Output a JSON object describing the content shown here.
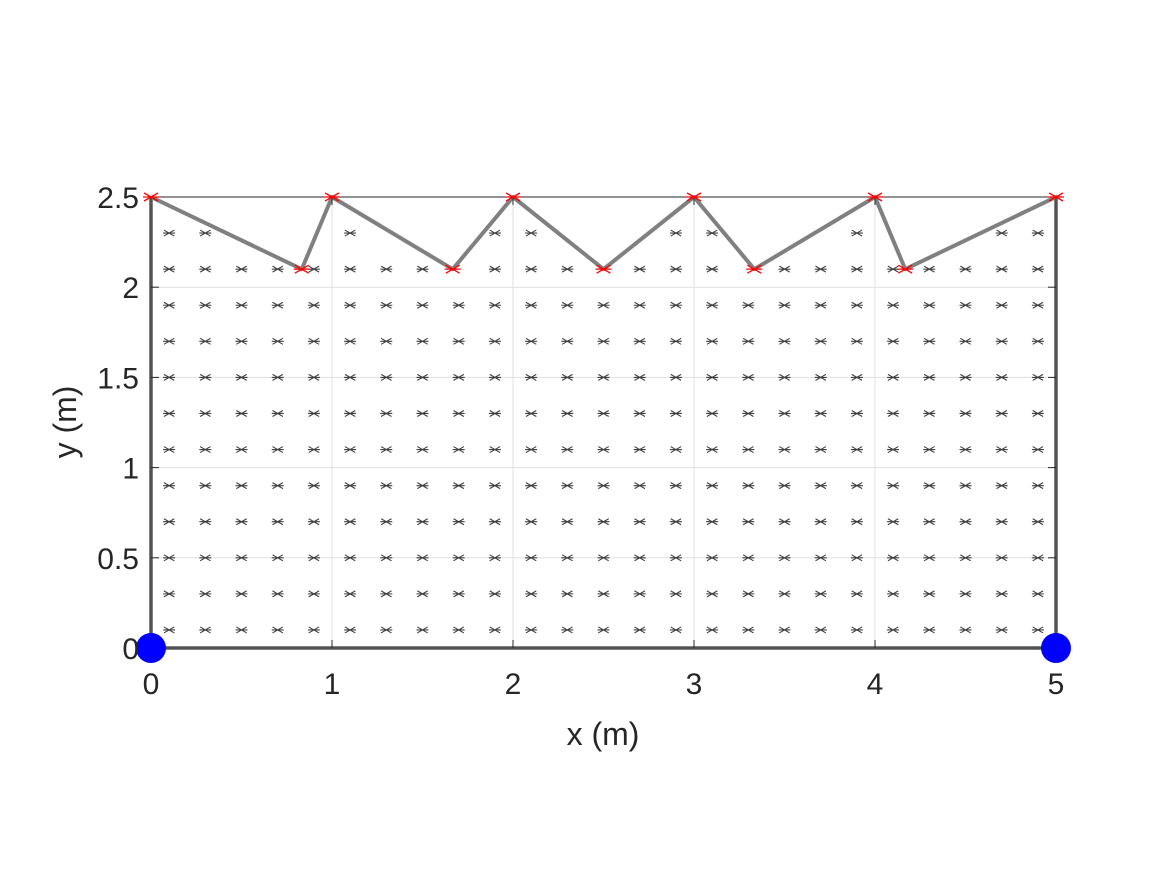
{
  "chart_data": {
    "type": "scatter",
    "title": "",
    "xlabel": "x (m)",
    "ylabel": "y (m)",
    "xlim": [
      0,
      5
    ],
    "ylim": [
      0,
      2.5
    ],
    "xticks": [
      "0",
      "1",
      "2",
      "3",
      "4",
      "5"
    ],
    "yticks": [
      "0",
      "0.5",
      "1",
      "1.5",
      "2",
      "2.5"
    ],
    "grid": true,
    "colors": {
      "outline": "#808080",
      "nodes": "#ff0000",
      "supports": "#0000ff",
      "interior_points": "#404040",
      "grid": "#e0e0e0",
      "axes": "#262626"
    },
    "series": [
      {
        "kind": "outline",
        "x": [
          0,
          0.833,
          1,
          1.667,
          2,
          2.5,
          3,
          3.333,
          4,
          4.167,
          5,
          5,
          0,
          0
        ],
        "y": [
          2.5,
          2.1,
          2.5,
          2.1,
          2.5,
          2.1,
          2.5,
          2.1,
          2.5,
          2.1,
          2.5,
          0,
          0,
          2.5
        ]
      },
      {
        "kind": "nodes",
        "x": [
          0,
          0.833,
          1,
          1.667,
          2,
          2.5,
          3,
          3.333,
          4,
          4.167,
          5
        ],
        "y": [
          2.5,
          2.1,
          2.5,
          2.1,
          2.5,
          2.1,
          2.5,
          2.1,
          2.5,
          2.1,
          2.5
        ]
      },
      {
        "kind": "supports",
        "x": [
          0,
          5
        ],
        "y": [
          0,
          0
        ]
      },
      {
        "kind": "interior_points",
        "x_grid": [
          0.1,
          0.3,
          0.5,
          0.7,
          0.9,
          1.1,
          1.3,
          1.5,
          1.7,
          1.9,
          2.1,
          2.3,
          2.5,
          2.7,
          2.9,
          3.1,
          3.3,
          3.5,
          3.7,
          3.9,
          4.1,
          4.3,
          4.5,
          4.7,
          4.9
        ],
        "y_grid": [
          0.1,
          0.3,
          0.5,
          0.7,
          0.9,
          1.1,
          1.3,
          1.5,
          1.7,
          1.9,
          2.1,
          2.3
        ]
      }
    ]
  }
}
